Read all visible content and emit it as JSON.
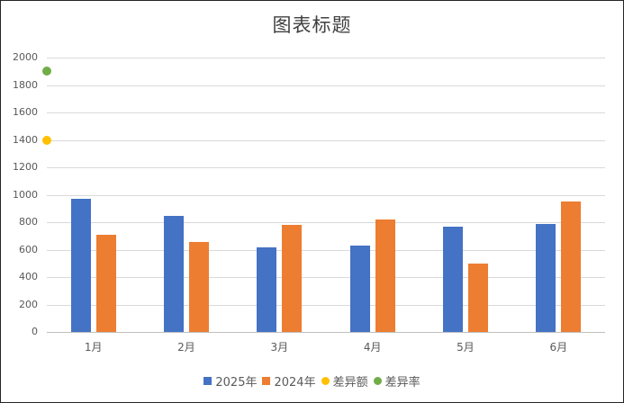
{
  "chart_data": {
    "type": "bar",
    "title": "图表标题",
    "categories": [
      "1月",
      "2月",
      "3月",
      "4月",
      "5月",
      "6月"
    ],
    "series": [
      {
        "name": "2025年",
        "type": "bar",
        "color": "#4472c4",
        "values": [
          970,
          846,
          616,
          630,
          767,
          787
        ]
      },
      {
        "name": "2024年",
        "type": "bar",
        "color": "#ed7d31",
        "values": [
          708,
          656,
          780,
          820,
          498,
          951
        ]
      },
      {
        "name": "差异额",
        "type": "scatter",
        "color": "#ffc000",
        "points": [
          {
            "x": 0,
            "y": 1400
          }
        ]
      },
      {
        "name": "差异率",
        "type": "scatter",
        "color": "#70ad47",
        "points": [
          {
            "x": 0,
            "y": 1900
          }
        ]
      }
    ],
    "xlabel": "",
    "ylabel": "",
    "ylim": [
      0,
      2000
    ],
    "yticks": [
      0,
      200,
      400,
      600,
      800,
      1000,
      1200,
      1400,
      1600,
      1800,
      2000
    ],
    "grid": true,
    "legend_position": "bottom"
  },
  "title": "图表标题",
  "yticks": [
    "2000",
    "1800",
    "1600",
    "1400",
    "1200",
    "1000",
    "800",
    "600",
    "400",
    "200",
    "0"
  ],
  "legend": [
    {
      "label": "2025年",
      "shape": "square",
      "color": "#4472c4"
    },
    {
      "label": "2024年",
      "shape": "square",
      "color": "#ed7d31"
    },
    {
      "label": "差异额",
      "shape": "circle",
      "color": "#ffc000"
    },
    {
      "label": "差异率",
      "shape": "circle",
      "color": "#70ad47"
    }
  ]
}
